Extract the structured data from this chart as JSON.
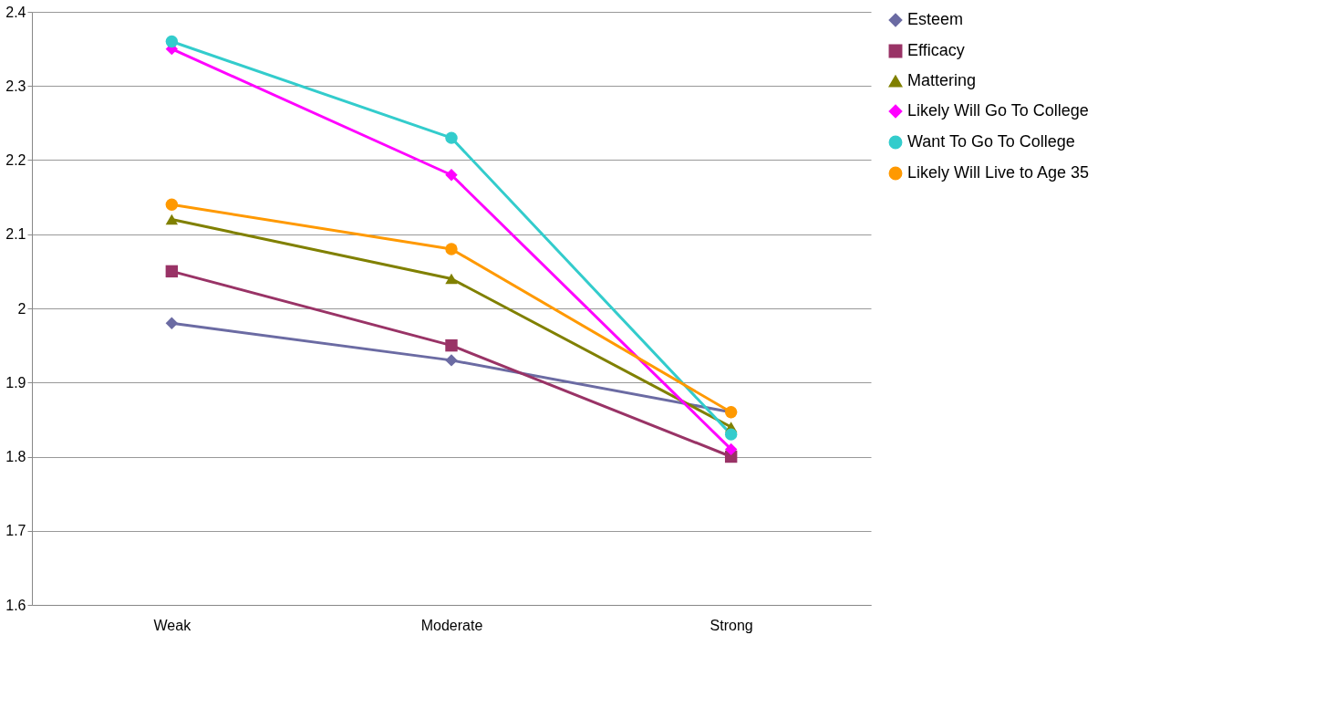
{
  "chart_data": {
    "type": "line",
    "categories": [
      "Weak",
      "Moderate",
      "Strong"
    ],
    "ylim": [
      1.6,
      2.4
    ],
    "yticks": [
      1.6,
      1.7,
      1.8,
      1.9,
      2,
      2.1,
      2.2,
      2.3,
      2.4
    ],
    "grid": "y",
    "legend": "right",
    "line_style": "solid",
    "series": [
      {
        "name": "Esteem",
        "color": "#6b6ba3",
        "marker": "diamond",
        "values": [
          1.98,
          1.93,
          1.86
        ]
      },
      {
        "name": "Efficacy",
        "color": "#993366",
        "marker": "square",
        "values": [
          2.05,
          1.95,
          1.8
        ]
      },
      {
        "name": "Mattering",
        "color": "#808000",
        "marker": "triangle",
        "values": [
          2.12,
          2.04,
          1.84
        ]
      },
      {
        "name": "Likely Will Go To College",
        "color": "#ff00ff",
        "marker": "diamond",
        "values": [
          2.35,
          2.18,
          1.81
        ]
      },
      {
        "name": "Want To Go To College",
        "color": "#33cccc",
        "marker": "circle",
        "values": [
          2.36,
          2.23,
          1.83
        ]
      },
      {
        "name": "Likely Will Live to Age 35",
        "color": "#ff9900",
        "marker": "circle",
        "values": [
          2.14,
          2.08,
          1.86
        ]
      }
    ]
  }
}
